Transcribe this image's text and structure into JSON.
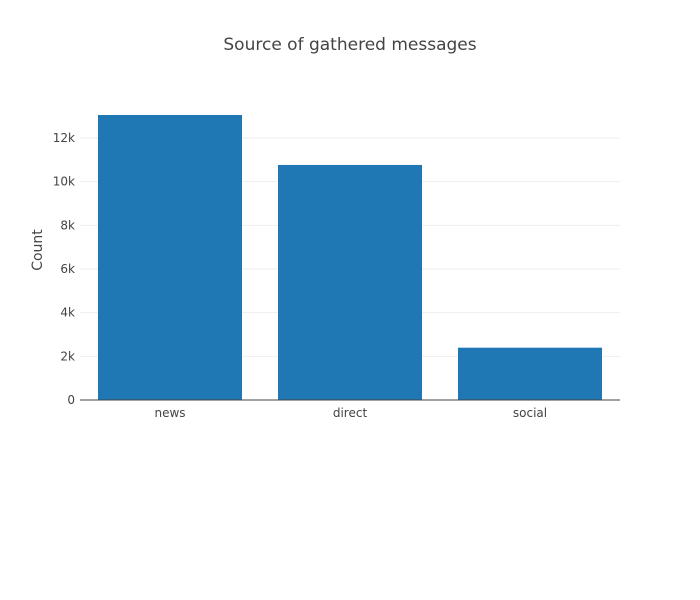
{
  "chart_data": {
    "type": "bar",
    "title": "Source of gathered messages",
    "xlabel": "",
    "ylabel": "Count",
    "categories": [
      "news",
      "direct",
      "social"
    ],
    "values": [
      13054,
      10766,
      2396
    ],
    "ylim": [
      0,
      13741
    ],
    "yticks": [
      0,
      2000,
      4000,
      6000,
      8000,
      10000,
      12000
    ],
    "ytick_labels": [
      "0",
      "2k",
      "4k",
      "6k",
      "8k",
      "10k",
      "12k"
    ],
    "grid": true,
    "legend": "none",
    "bar_color": "#1f77b4"
  }
}
